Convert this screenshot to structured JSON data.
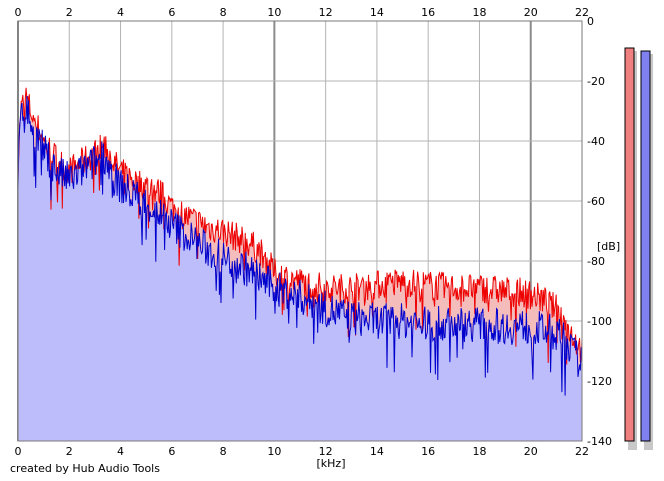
{
  "footer": {
    "credit": "created by Hub Audio Tools"
  },
  "chart_data": {
    "type": "area",
    "xlabel": "[kHz]",
    "ylabel": "[dB]",
    "xlim": [
      0,
      22
    ],
    "ylim": [
      -140,
      0
    ],
    "x_ticks": [
      "0",
      "2",
      "4",
      "6",
      "8",
      "10",
      "12",
      "14",
      "16",
      "18",
      "20",
      "22"
    ],
    "y_ticks": [
      "0",
      "-20",
      "-40",
      "-60",
      "-80",
      "-100",
      "-120",
      "-140"
    ],
    "grid": true,
    "colors": {
      "ch1_line": "#ee0000",
      "ch1_fill": "#f5bcbc",
      "ch2_line": "#0000cc",
      "ch2_fill": "#bdbdfb",
      "meter1": "#f08080",
      "meter2": "#8080f0",
      "grid": "#b4b4b4",
      "grid_major": "#8c8c8c"
    },
    "series": [
      {
        "x": [
          0,
          0.1,
          0.3,
          0.5,
          1,
          1.5,
          2,
          2.5,
          3,
          3.4,
          3.7,
          4,
          4.5,
          5,
          5.5,
          6,
          6.5,
          7,
          7.5,
          8,
          8.5,
          9,
          9.5,
          10,
          11,
          12,
          13,
          14,
          15,
          16,
          17,
          18,
          19,
          20,
          20.5,
          21,
          21.5,
          22
        ],
        "values": [
          -48,
          -30,
          -25,
          -30,
          -40,
          -46,
          -50,
          -47,
          -44,
          -41,
          -47,
          -50,
          -53,
          -55,
          -57,
          -62,
          -65,
          -67,
          -69,
          -70,
          -72,
          -74,
          -77,
          -84,
          -87,
          -89,
          -89,
          -88,
          -87,
          -88,
          -89,
          -89,
          -90,
          -91,
          -93,
          -96,
          -103,
          -110
        ]
      },
      {
        "x": [
          0,
          0.1,
          0.3,
          0.5,
          1,
          1.5,
          2,
          2.5,
          3,
          3.4,
          3.7,
          4,
          4.5,
          5,
          5.5,
          6,
          6.5,
          7,
          7.5,
          8,
          8.5,
          9,
          9.5,
          10,
          11,
          12,
          13,
          14,
          15,
          16,
          17,
          18,
          19,
          20,
          20.5,
          21,
          21.5,
          22
        ],
        "values": [
          -52,
          -33,
          -28,
          -34,
          -43,
          -50,
          -53,
          -50,
          -47,
          -45,
          -52,
          -55,
          -58,
          -61,
          -64,
          -68,
          -71,
          -74,
          -77,
          -79,
          -81,
          -83,
          -86,
          -89,
          -92,
          -96,
          -99,
          -100,
          -100,
          -101,
          -101,
          -101,
          -102,
          -102,
          -103,
          -104,
          -108,
          -115
        ]
      }
    ],
    "meters": [
      {
        "channel": 1,
        "level_db": -9
      },
      {
        "channel": 2,
        "level_db": -10
      }
    ]
  }
}
